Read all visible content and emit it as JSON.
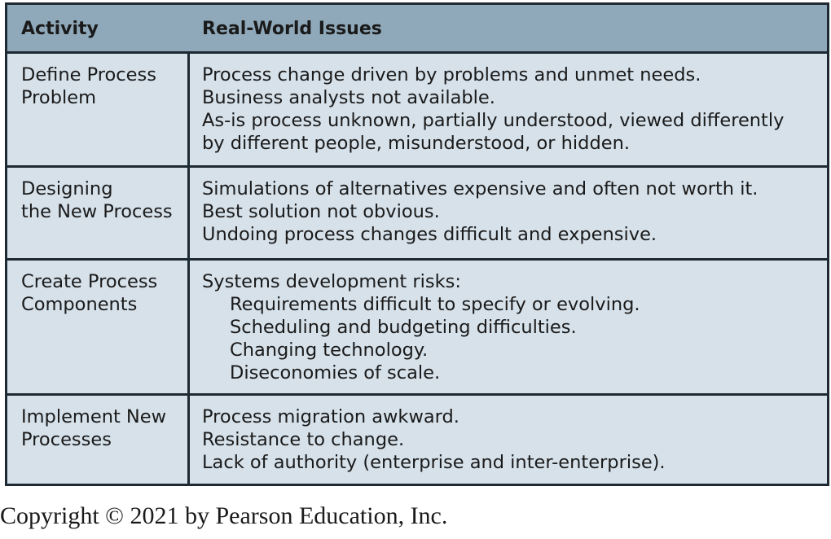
{
  "table": {
    "headers": {
      "activity": "Activity",
      "issues": "Real-World Issues"
    },
    "rows": [
      {
        "activity": [
          "Define Process",
          "Problem"
        ],
        "issues": [
          {
            "text": "Process change driven by problems and unmet needs.",
            "indent": false
          },
          {
            "text": "Business analysts not available.",
            "indent": false
          },
          {
            "text": "As-is process unknown, partially understood, viewed differently",
            "indent": false
          },
          {
            "text": "by different people, misunderstood, or hidden.",
            "indent": false
          }
        ]
      },
      {
        "activity": [
          "Designing",
          "the New Process"
        ],
        "issues": [
          {
            "text": "Simulations of alternatives expensive and often not worth it.",
            "indent": false
          },
          {
            "text": "Best solution not obvious.",
            "indent": false
          },
          {
            "text": "Undoing process changes difficult and expensive.",
            "indent": false
          }
        ]
      },
      {
        "activity": [
          "Create Process",
          "Components"
        ],
        "issues": [
          {
            "text": "Systems development risks:",
            "indent": false
          },
          {
            "text": "Requirements difficult to specify or evolving.",
            "indent": true
          },
          {
            "text": "Scheduling and budgeting difficulties.",
            "indent": true
          },
          {
            "text": "Changing technology.",
            "indent": true
          },
          {
            "text": "Diseconomies of scale.",
            "indent": true
          }
        ]
      },
      {
        "activity": [
          "Implement New",
          "Processes"
        ],
        "issues": [
          {
            "text": "Process migration awkward.",
            "indent": false
          },
          {
            "text": "Resistance to change.",
            "indent": false
          },
          {
            "text": "Lack of authority (enterprise and inter-enterprise).",
            "indent": false
          }
        ]
      }
    ]
  },
  "footer": {
    "copyright": "Copyright © 2021 by Pearson Education, Inc."
  },
  "colors": {
    "header_bg": "#8fa9ba",
    "body_bg": "#d6e1ea",
    "border": "#1e2a33"
  }
}
